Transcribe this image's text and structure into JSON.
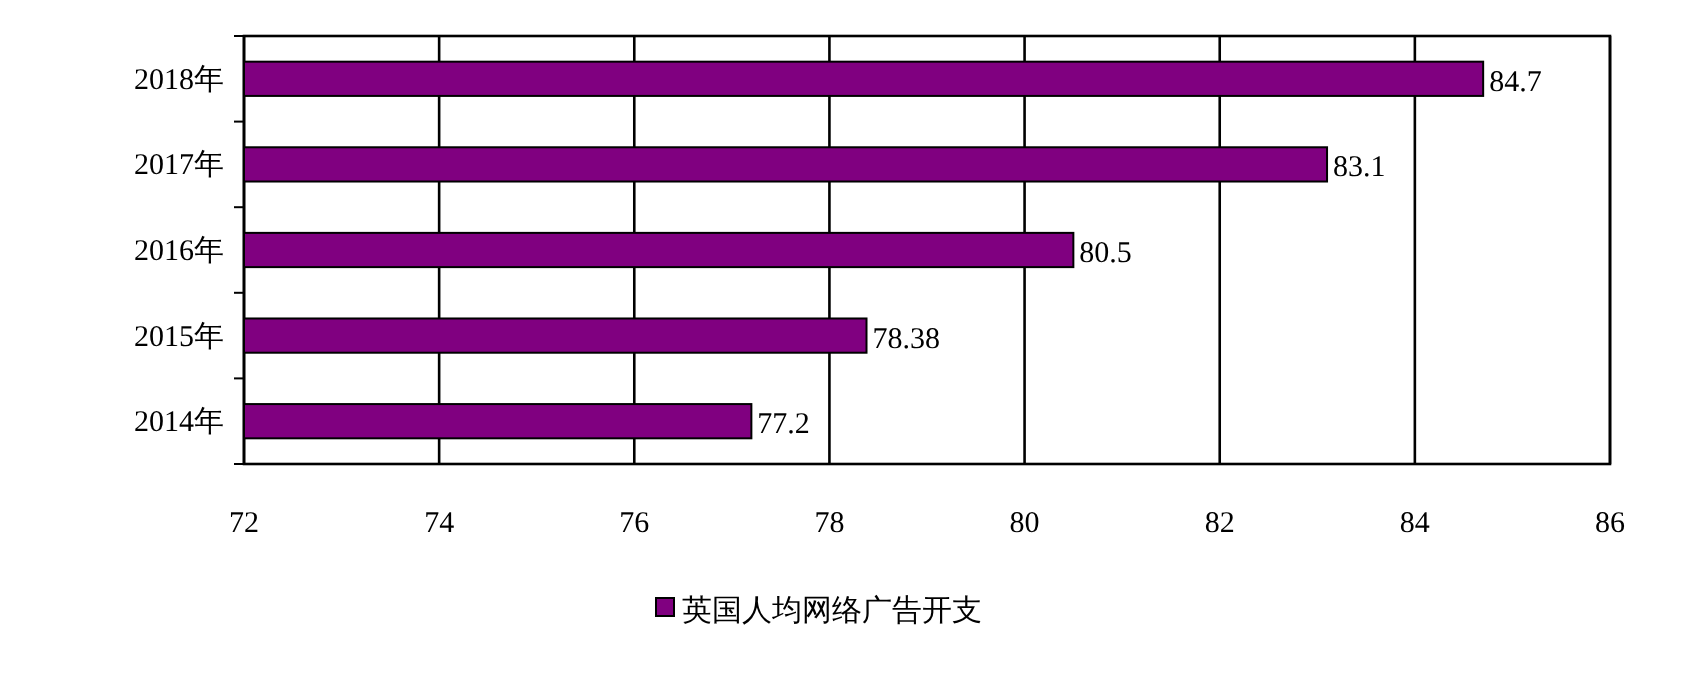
{
  "chart_data": {
    "type": "bar",
    "orientation": "horizontal",
    "categories": [
      "2018年",
      "2017年",
      "2016年",
      "2015年",
      "2014年"
    ],
    "series": [
      {
        "name": "英国人均网络广告开支",
        "color": "#800080",
        "values": [
          84.7,
          83.1,
          80.5,
          78.38,
          77.2
        ]
      }
    ],
    "xlim": [
      72,
      86
    ],
    "xticks": [
      72,
      74,
      76,
      78,
      80,
      82,
      84,
      86
    ],
    "grid": "x",
    "legend": "bottom",
    "data_labels": true
  }
}
